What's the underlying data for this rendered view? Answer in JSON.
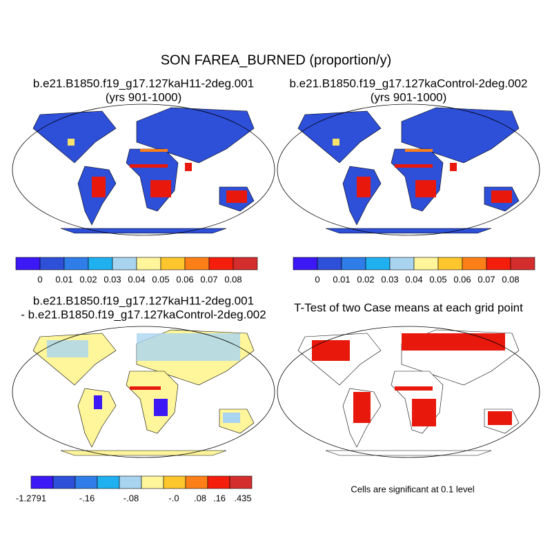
{
  "title": "SON FAREA_BURNED (proportion/y)",
  "panels": [
    {
      "title": "b.e21.B1850.f19_g17.127kaH11-2deg.001",
      "subtitle": "(yrs 901-1000)"
    },
    {
      "title": "b.e21.B1850.f19_g17.127kaControl-2deg.002",
      "subtitle": "(yrs 901-1000)"
    },
    {
      "title": "b.e21.B1850.f19_g17.127kaH11-2deg.001",
      "subtitle": "- b.e21.B1850.f19_g17.127kaControl-2deg.002"
    },
    {
      "title": "T-Test of two Case means at each grid point"
    }
  ],
  "colorbars": [
    {
      "labels": [
        "0",
        "0.01",
        "0.02",
        "0.03",
        "0.04",
        "0.05",
        "0.06",
        "0.07",
        "0.08"
      ]
    },
    {
      "labels": [
        "0",
        "0.01",
        "0.02",
        "0.03",
        "0.04",
        "0.05",
        "0.06",
        "0.07",
        "0.08"
      ]
    },
    {
      "labels": [
        "-1.2791",
        "-.16",
        "-.08",
        "-.0",
        ".08",
        ".16",
        ".435"
      ]
    }
  ],
  "note": "Cells are significant at 0.1 level"
}
